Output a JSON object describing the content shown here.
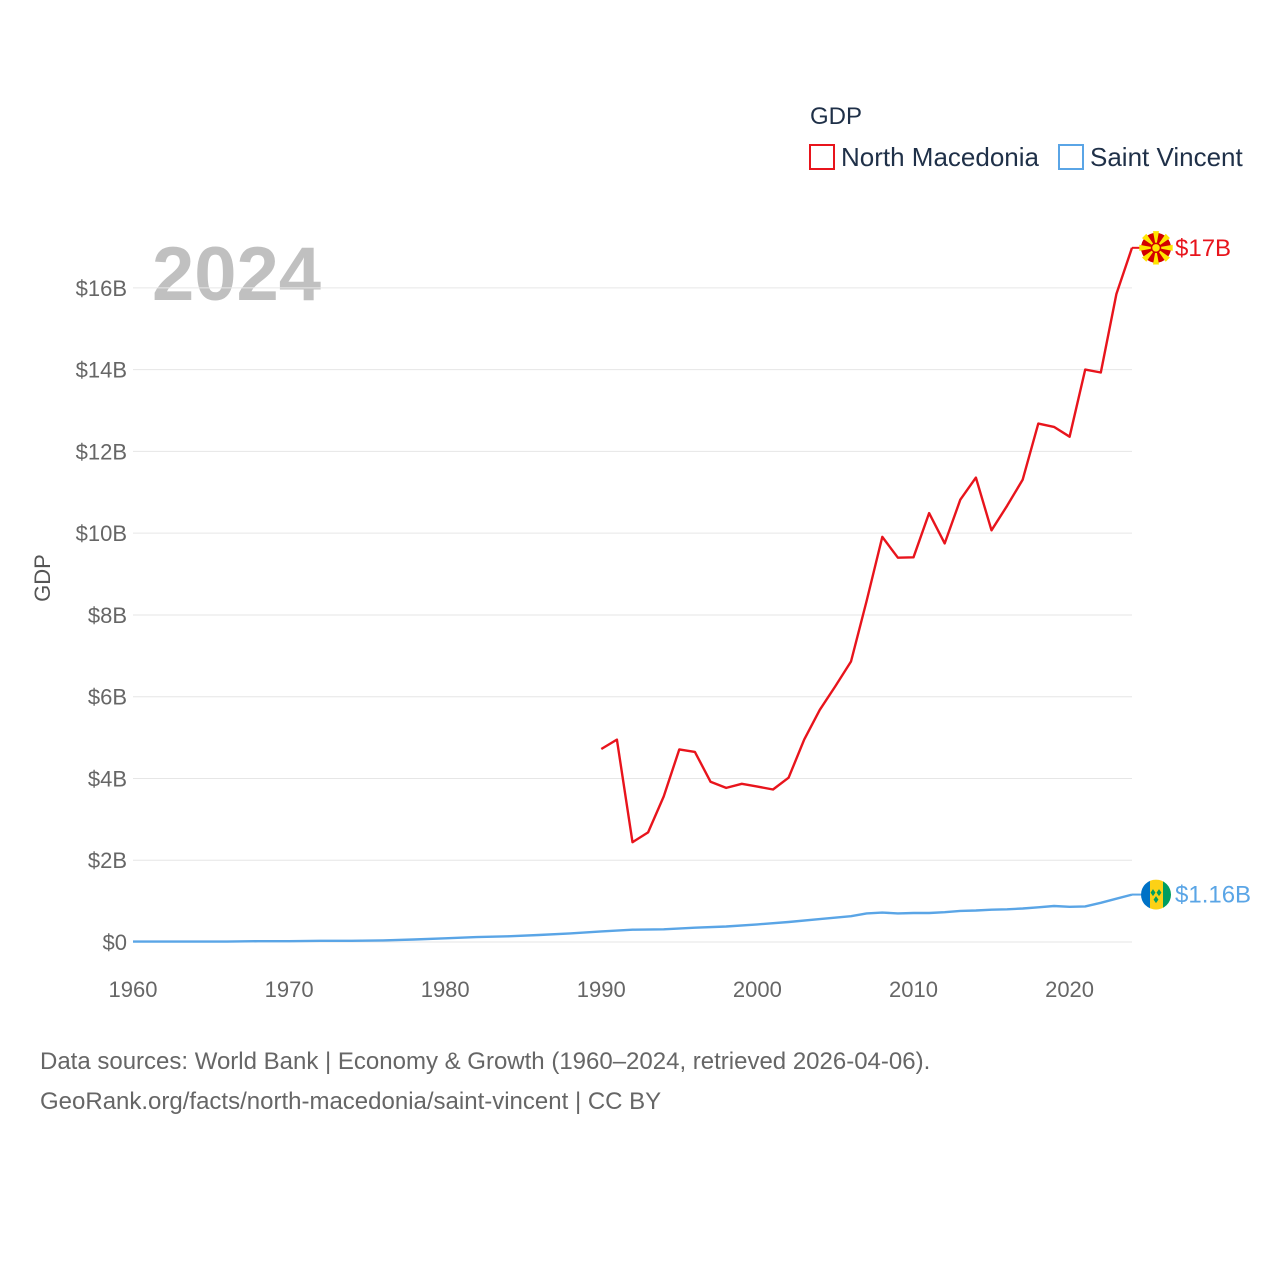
{
  "chart_data": {
    "type": "line",
    "title": "GDP",
    "ylabel": "GDP",
    "xlabel": "",
    "year_watermark": "2024",
    "xlim": [
      1960,
      2024
    ],
    "ylim": [
      0,
      17
    ],
    "x_ticks": [
      1960,
      1970,
      1980,
      1990,
      2000,
      2010,
      2020
    ],
    "x_tick_labels": [
      "1960",
      "1970",
      "1980",
      "1990",
      "2000",
      "2010",
      "2020"
    ],
    "y_ticks": [
      0,
      2,
      4,
      6,
      8,
      10,
      12,
      14,
      16
    ],
    "y_tick_labels": [
      "$0",
      "$2B",
      "$4B",
      "$6B",
      "$8B",
      "$10B",
      "$12B",
      "$14B",
      "$16B"
    ],
    "legend_position": "top-right",
    "series": [
      {
        "name": "North Macedonia",
        "color": "#e8141c",
        "end_label": "$17B",
        "x": [
          1990,
          1991,
          1992,
          1993,
          1994,
          1995,
          1996,
          1997,
          1998,
          1999,
          2000,
          2001,
          2002,
          2003,
          2004,
          2005,
          2006,
          2007,
          2008,
          2009,
          2010,
          2011,
          2012,
          2013,
          2014,
          2015,
          2016,
          2017,
          2018,
          2019,
          2020,
          2021,
          2022,
          2023,
          2024
        ],
        "values": [
          4.72,
          4.95,
          2.44,
          2.68,
          3.56,
          4.71,
          4.65,
          3.92,
          3.77,
          3.87,
          3.8,
          3.73,
          4.02,
          4.95,
          5.68,
          6.26,
          6.86,
          8.34,
          9.91,
          9.4,
          9.41,
          10.49,
          9.75,
          10.82,
          11.36,
          10.07,
          10.67,
          11.31,
          12.68,
          12.6,
          12.36,
          14.0,
          13.93,
          15.85,
          16.98
        ]
      },
      {
        "name": "Saint Vincent",
        "color": "#5aa5e6",
        "end_label": "$1.16B",
        "x": [
          1960,
          1962,
          1964,
          1966,
          1968,
          1970,
          1972,
          1974,
          1976,
          1978,
          1980,
          1982,
          1984,
          1986,
          1988,
          1990,
          1992,
          1994,
          1996,
          1998,
          2000,
          2002,
          2004,
          2006,
          2007,
          2008,
          2009,
          2010,
          2011,
          2012,
          2013,
          2014,
          2015,
          2016,
          2017,
          2018,
          2019,
          2020,
          2021,
          2022,
          2023,
          2024
        ],
        "values": [
          0.01,
          0.01,
          0.01,
          0.01,
          0.02,
          0.02,
          0.03,
          0.03,
          0.04,
          0.06,
          0.09,
          0.12,
          0.14,
          0.17,
          0.21,
          0.26,
          0.3,
          0.31,
          0.35,
          0.38,
          0.43,
          0.49,
          0.56,
          0.63,
          0.7,
          0.72,
          0.7,
          0.71,
          0.71,
          0.73,
          0.76,
          0.77,
          0.79,
          0.8,
          0.82,
          0.85,
          0.88,
          0.86,
          0.87,
          0.96,
          1.06,
          1.16
        ]
      }
    ]
  },
  "footer": {
    "line1": "Data sources: World Bank | Economy & Growth (1960–2024, retrieved 2026-04-06).",
    "line2": "GeoRank.org/facts/north-macedonia/saint-vincent | CC BY"
  }
}
